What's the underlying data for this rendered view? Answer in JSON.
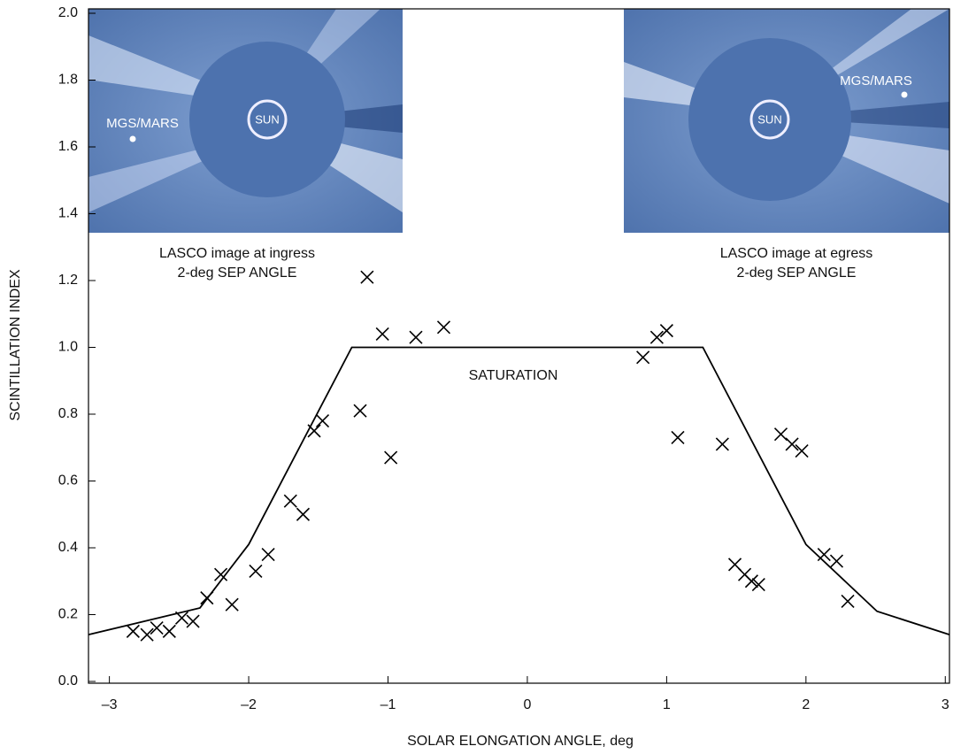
{
  "chart_data": {
    "type": "scatter",
    "x_label": "SOLAR ELONGATION ANGLE, deg",
    "y_label": "SCINTILLATION INDEX",
    "annotation": "SATURATION",
    "xlim": [
      -3.15,
      3.03
    ],
    "ylim": [
      0,
      2
    ],
    "xticks": [
      {
        "value": -3,
        "label": "–3"
      },
      {
        "value": -2,
        "label": "–2"
      },
      {
        "value": -1,
        "label": "–1"
      },
      0,
      1,
      2,
      3
    ],
    "yticks": [
      {
        "value": 0,
        "label": "0.0"
      },
      0.2,
      0.4,
      0.6,
      0.8,
      {
        "value": 1,
        "label": "1.0"
      },
      1.2,
      1.4,
      1.6,
      1.8,
      {
        "value": 2,
        "label": "2.0"
      }
    ],
    "grid": false,
    "series": [
      {
        "type": "line",
        "color": "#000000",
        "x": [
          -3.15,
          -2.35,
          -2.0,
          -1.26,
          1.26,
          2.0,
          2.51,
          3.03
        ],
        "values": [
          0.14,
          0.22,
          0.41,
          1.0,
          1.0,
          0.41,
          0.21,
          0.14
        ]
      },
      {
        "type": "scatter",
        "color": "#000000",
        "x": [
          -2.83,
          -2.73,
          -2.66,
          -2.57,
          -2.48,
          -2.4,
          -2.3,
          -2.2,
          -2.12,
          -1.95,
          -1.86,
          -1.7,
          -1.61,
          -1.53,
          -1.47,
          -1.2,
          -1.15,
          -1.04,
          -0.98,
          -0.8,
          -0.6,
          0.83,
          0.93,
          1.0,
          1.08,
          1.4,
          1.49,
          1.56,
          1.61,
          1.66,
          1.82,
          1.9,
          1.97,
          2.13,
          2.22,
          2.3
        ],
        "values": [
          0.15,
          0.14,
          0.16,
          0.15,
          0.19,
          0.18,
          0.25,
          0.32,
          0.23,
          0.33,
          0.38,
          0.54,
          0.5,
          0.75,
          0.78,
          0.81,
          1.21,
          1.04,
          0.67,
          1.03,
          1.06,
          0.97,
          1.03,
          1.05,
          0.73,
          0.71,
          0.35,
          0.32,
          0.3,
          0.29,
          0.74,
          0.71,
          0.69,
          0.38,
          0.36,
          0.24
        ]
      }
    ],
    "insets": [
      {
        "object_label": "MGS/MARS",
        "sun_label": "SUN",
        "caption": [
          "LASCO image at ingress",
          "2-deg SEP ANGLE"
        ]
      },
      {
        "object_label": "MGS/MARS",
        "sun_label": "SUN",
        "caption": [
          "LASCO image at egress",
          "2-deg SEP ANGLE"
        ]
      }
    ]
  }
}
